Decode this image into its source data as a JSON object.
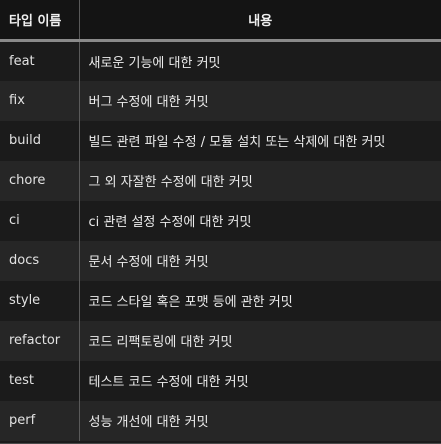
{
  "table": {
    "headers": {
      "type": "타입 이름",
      "description": "내용"
    },
    "rows": [
      {
        "type": "feat",
        "description": "새로운 기능에 대한 커밋"
      },
      {
        "type": "fix",
        "description": "버그 수정에 대한 커밋"
      },
      {
        "type": "build",
        "description": "빌드 관련 파일 수정 / 모듈 설치 또는 삭제에 대한 커밋"
      },
      {
        "type": "chore",
        "description": "그 외 자잘한 수정에 대한 커밋"
      },
      {
        "type": "ci",
        "description": "ci 관련 설정 수정에 대한 커밋"
      },
      {
        "type": "docs",
        "description": "문서 수정에 대한 커밋"
      },
      {
        "type": "style",
        "description": "코드 스타일 혹은 포맷 등에 관한 커밋"
      },
      {
        "type": "refactor",
        "description": "코드 리팩토링에 대한 커밋"
      },
      {
        "type": "test",
        "description": "테스트 코드 수정에 대한 커밋"
      },
      {
        "type": "perf",
        "description": "성능 개선에 대한 커밋"
      }
    ]
  }
}
